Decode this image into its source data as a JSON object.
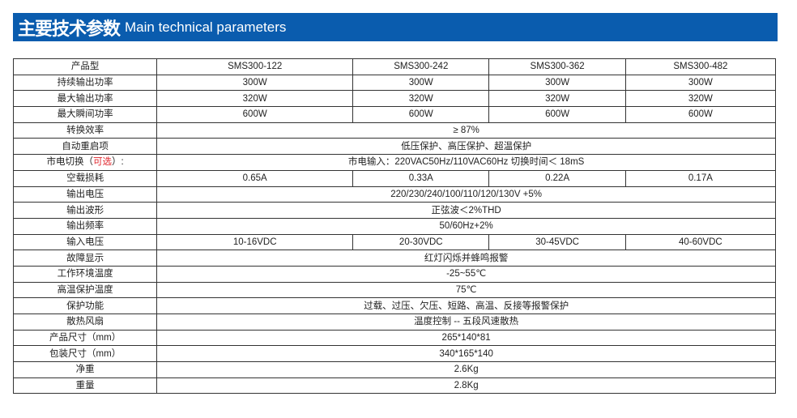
{
  "header": {
    "title_cn": "主要技术参数",
    "title_en": "Main technical parameters",
    "color": "#0a5cae"
  },
  "table": {
    "rows": [
      {
        "label": "产品型",
        "cells": [
          "SMS300-122",
          "SMS300-242",
          "SMS300-362",
          "SMS300-482"
        ]
      },
      {
        "label": "持续输出功率",
        "cells": [
          "300W",
          "300W",
          "300W",
          "300W"
        ]
      },
      {
        "label": "最大输出功率",
        "cells": [
          "320W",
          "320W",
          "320W",
          "320W"
        ]
      },
      {
        "label": "最大瞬间功率",
        "cells": [
          "600W",
          "600W",
          "600W",
          "600W"
        ]
      },
      {
        "label": "转换效率",
        "cells": [
          "≥ 87%"
        ]
      },
      {
        "label": "自动重启项",
        "cells": [
          "低压保护、高压保护、超温保护"
        ]
      },
      {
        "label": "市电切换（",
        "label_red": "可选",
        "label_end": "）:",
        "cells": [
          "市电输入：220VAC50Hz/110VAC60Hz   切换时间＜ 18mS"
        ]
      },
      {
        "label": "空载损耗",
        "cells": [
          "0.65A",
          "0.33A",
          "0.22A",
          "0.17A"
        ]
      },
      {
        "label": "输出电压",
        "cells": [
          "220/230/240/100/110/120/130V +5%"
        ]
      },
      {
        "label": "输出波形",
        "cells": [
          "正弦波＜2%THD"
        ]
      },
      {
        "label": "输出频率",
        "cells": [
          "50/60Hz+2%"
        ]
      },
      {
        "label": "输入电压",
        "cells": [
          "10-16VDC",
          "20-30VDC",
          "30-45VDC",
          "40-60VDC"
        ]
      },
      {
        "label": "故障显示",
        "cells": [
          "红灯闪烁并蜂鸣报警"
        ]
      },
      {
        "label": "工作环境温度",
        "cells": [
          "-25~55℃"
        ]
      },
      {
        "label": "高温保护温度",
        "cells": [
          "75℃"
        ]
      },
      {
        "label": "保护功能",
        "cells": [
          "过载、过压、欠压、短路、高温、反接等报警保护"
        ]
      },
      {
        "label": "散热风扇",
        "cells": [
          "温度控制 -- 五段风速散热"
        ]
      },
      {
        "label": "产品尺寸（mm）",
        "cells": [
          "265*140*81"
        ]
      },
      {
        "label": "包装尺寸（mm）",
        "cells": [
          "340*165*140"
        ]
      },
      {
        "label": "净重",
        "cells": [
          "2.6Kg"
        ]
      },
      {
        "label": "重量",
        "cells": [
          "2.8Kg"
        ]
      }
    ]
  }
}
